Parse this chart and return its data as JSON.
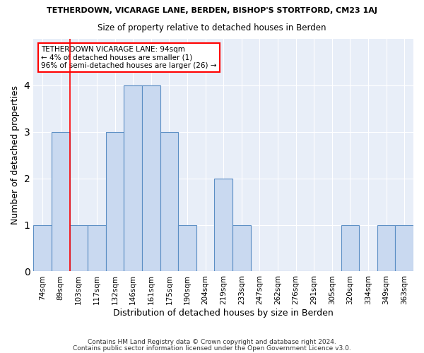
{
  "title": "TETHERDOWN, VICARAGE LANE, BERDEN, BISHOP'S STORTFORD, CM23 1AJ",
  "subtitle": "Size of property relative to detached houses in Berden",
  "xlabel": "Distribution of detached houses by size in Berden",
  "ylabel": "Number of detached properties",
  "categories": [
    "74sqm",
    "89sqm",
    "103sqm",
    "117sqm",
    "132sqm",
    "146sqm",
    "161sqm",
    "175sqm",
    "190sqm",
    "204sqm",
    "219sqm",
    "233sqm",
    "247sqm",
    "262sqm",
    "276sqm",
    "291sqm",
    "305sqm",
    "320sqm",
    "334sqm",
    "349sqm",
    "363sqm"
  ],
  "values": [
    1,
    3,
    1,
    1,
    3,
    4,
    4,
    3,
    1,
    0,
    2,
    1,
    0,
    0,
    0,
    0,
    0,
    1,
    0,
    1,
    1
  ],
  "bar_color": "#c9d9f0",
  "bar_edge_color": "#5b8ec4",
  "red_line_x": 1.5,
  "annotation_title": "TETHERDOWN VICARAGE LANE: 94sqm",
  "annotation_line1": "← 4% of detached houses are smaller (1)",
  "annotation_line2": "96% of semi-detached houses are larger (26) →",
  "ylim": [
    0,
    5
  ],
  "yticks": [
    0,
    1,
    2,
    3,
    4,
    5
  ],
  "bg_color": "#e8eef8",
  "footer1": "Contains HM Land Registry data © Crown copyright and database right 2024.",
  "footer2": "Contains public sector information licensed under the Open Government Licence v3.0."
}
